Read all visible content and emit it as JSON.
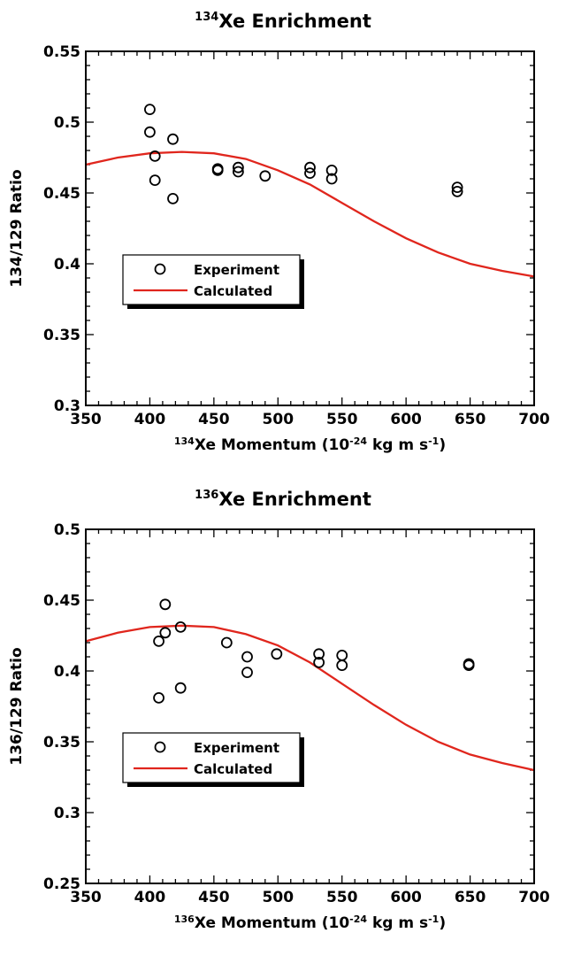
{
  "chart_data": [
    {
      "type": "scatter",
      "title": "Xe Enrichment",
      "title_isotope": "134",
      "xlabel": "Xe Momentum (10",
      "xlabel_isotope": "134",
      "xlabel_exponent": "-24",
      "xlabel_units": " kg m s",
      "xlabel_units_exponent": "-1",
      "xlabel_close": ")",
      "ylabel": "134/129 Ratio",
      "xlim": [
        350,
        700
      ],
      "ylim": [
        0.3,
        0.55
      ],
      "xticks": [
        350,
        400,
        450,
        500,
        550,
        600,
        650,
        700
      ],
      "xtick_labels": [
        "350",
        "400",
        "450",
        "500",
        "550",
        "600",
        "650",
        "700"
      ],
      "yticks": [
        0.3,
        0.35,
        0.4,
        0.45,
        0.5,
        0.55
      ],
      "ytick_labels": [
        "0.3",
        "0.35",
        "0.4",
        "0.45",
        "0.5",
        "0.55"
      ],
      "grid": false,
      "legend_position": "lower-left",
      "series": [
        {
          "name": "Experiment",
          "kind": "scatter",
          "marker": "open-circle",
          "color": "#000000",
          "points": [
            [
              400,
              0.509
            ],
            [
              400,
              0.493
            ],
            [
              404,
              0.476
            ],
            [
              404,
              0.459
            ],
            [
              418,
              0.488
            ],
            [
              418,
              0.446
            ],
            [
              453,
              0.467
            ],
            [
              453,
              0.466
            ],
            [
              469,
              0.468
            ],
            [
              469,
              0.465
            ],
            [
              490,
              0.462
            ],
            [
              525,
              0.468
            ],
            [
              525,
              0.464
            ],
            [
              542,
              0.466
            ],
            [
              542,
              0.46
            ],
            [
              640,
              0.454
            ],
            [
              640,
              0.451
            ]
          ]
        },
        {
          "name": "Calculated",
          "kind": "line",
          "color": "#e0261d",
          "points": [
            [
              350,
              0.47
            ],
            [
              375,
              0.475
            ],
            [
              400,
              0.478
            ],
            [
              425,
              0.479
            ],
            [
              450,
              0.478
            ],
            [
              475,
              0.474
            ],
            [
              500,
              0.466
            ],
            [
              525,
              0.456
            ],
            [
              550,
              0.443
            ],
            [
              575,
              0.43
            ],
            [
              600,
              0.418
            ],
            [
              625,
              0.408
            ],
            [
              650,
              0.4
            ],
            [
              675,
              0.395
            ],
            [
              700,
              0.391
            ]
          ]
        }
      ]
    },
    {
      "type": "scatter",
      "title": "Xe Enrichment",
      "title_isotope": "136",
      "xlabel": "Xe Momentum (10",
      "xlabel_isotope": "136",
      "xlabel_exponent": "-24",
      "xlabel_units": " kg m s",
      "xlabel_units_exponent": "-1",
      "xlabel_close": ")",
      "ylabel": "136/129 Ratio",
      "xlim": [
        350,
        700
      ],
      "ylim": [
        0.25,
        0.5
      ],
      "xticks": [
        350,
        400,
        450,
        500,
        550,
        600,
        650,
        700
      ],
      "xtick_labels": [
        "350",
        "400",
        "450",
        "500",
        "550",
        "600",
        "650",
        "700"
      ],
      "yticks": [
        0.25,
        0.3,
        0.35,
        0.4,
        0.45,
        0.5
      ],
      "ytick_labels": [
        "0.25",
        "0.3",
        "0.35",
        "0.4",
        "0.45",
        "0.5"
      ],
      "grid": false,
      "legend_position": "lower-left",
      "series": [
        {
          "name": "Experiment",
          "kind": "scatter",
          "marker": "open-circle",
          "color": "#000000",
          "points": [
            [
              412,
              0.447
            ],
            [
              412,
              0.427
            ],
            [
              407,
              0.421
            ],
            [
              407,
              0.381
            ],
            [
              424,
              0.431
            ],
            [
              424,
              0.388
            ],
            [
              460,
              0.42
            ],
            [
              476,
              0.41
            ],
            [
              476,
              0.399
            ],
            [
              499,
              0.412
            ],
            [
              532,
              0.412
            ],
            [
              532,
              0.406
            ],
            [
              550,
              0.411
            ],
            [
              550,
              0.404
            ],
            [
              649,
              0.405
            ],
            [
              649,
              0.404
            ]
          ]
        },
        {
          "name": "Calculated",
          "kind": "line",
          "color": "#e0261d",
          "points": [
            [
              350,
              0.421
            ],
            [
              375,
              0.427
            ],
            [
              400,
              0.431
            ],
            [
              425,
              0.432
            ],
            [
              450,
              0.431
            ],
            [
              475,
              0.426
            ],
            [
              500,
              0.418
            ],
            [
              525,
              0.406
            ],
            [
              550,
              0.391
            ],
            [
              575,
              0.376
            ],
            [
              600,
              0.362
            ],
            [
              625,
              0.35
            ],
            [
              650,
              0.341
            ],
            [
              675,
              0.335
            ],
            [
              700,
              0.33
            ]
          ]
        }
      ]
    }
  ]
}
